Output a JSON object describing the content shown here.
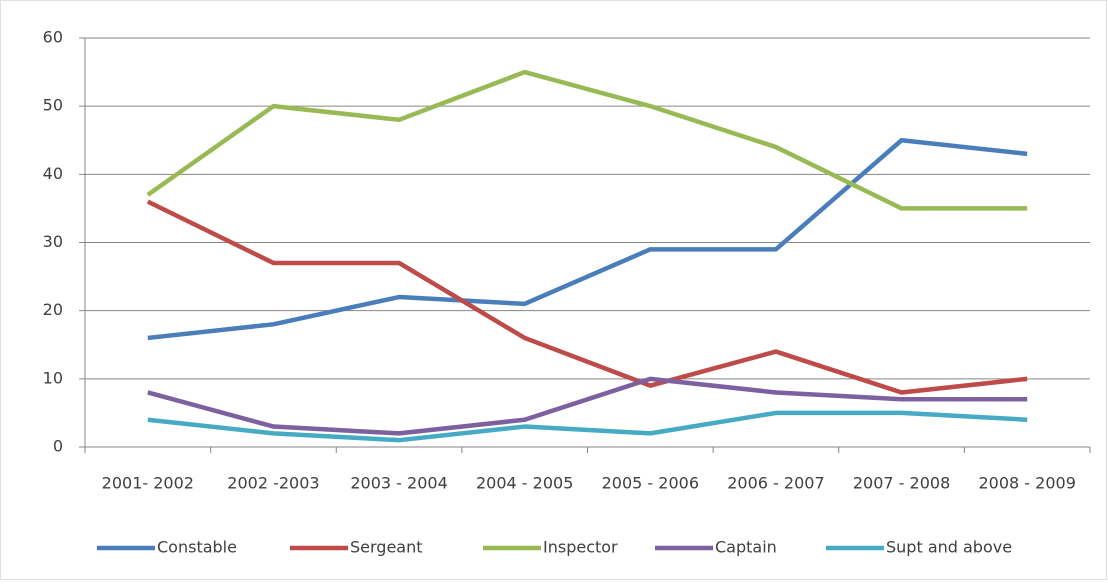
{
  "chart_data": {
    "type": "line",
    "categories": [
      "2001- 2002",
      "2002 -2003",
      "2003 - 2004",
      "2004 - 2005",
      "2005 - 2006",
      "2006 - 2007",
      "2007 - 2008",
      "2008 - 2009"
    ],
    "series": [
      {
        "name": "Constable",
        "color": "#4a7ebb",
        "values": [
          16,
          18,
          22,
          21,
          29,
          29,
          45,
          43
        ]
      },
      {
        "name": "Sergeant",
        "color": "#be4b48",
        "values": [
          36,
          27,
          27,
          16,
          9,
          14,
          8,
          10
        ]
      },
      {
        "name": "Inspector",
        "color": "#98b954",
        "values": [
          37,
          50,
          48,
          55,
          50,
          44,
          35,
          35
        ]
      },
      {
        "name": "Captain",
        "color": "#7d60a0",
        "values": [
          8,
          3,
          2,
          4,
          10,
          8,
          7,
          7
        ]
      },
      {
        "name": "Supt and above",
        "color": "#46aac5",
        "values": [
          4,
          2,
          1,
          3,
          2,
          5,
          5,
          4
        ]
      }
    ],
    "ylim": [
      0,
      60
    ],
    "yticks": [
      0,
      10,
      20,
      30,
      40,
      50,
      60
    ],
    "grid": true,
    "legend": "bottom"
  }
}
